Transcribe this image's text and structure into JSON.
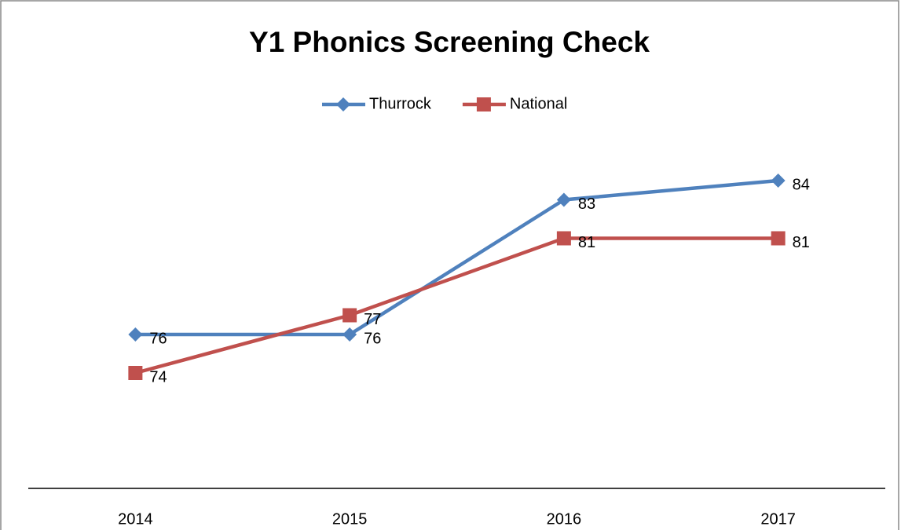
{
  "chart_data": {
    "type": "line",
    "title": "Y1 Phonics Screening Check",
    "categories": [
      "2014",
      "2015",
      "2016",
      "2017"
    ],
    "series": [
      {
        "name": "Thurrock",
        "color": "#4f81bd",
        "marker": "diamond",
        "values": [
          76,
          76,
          83,
          84
        ]
      },
      {
        "name": "National",
        "color": "#c0504d",
        "marker": "square",
        "values": [
          74,
          77,
          81,
          81
        ]
      }
    ],
    "ylim": [
      68,
      86
    ],
    "legend": "top",
    "data_labels": true
  }
}
